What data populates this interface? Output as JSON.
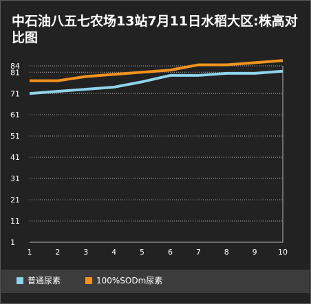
{
  "chart_data": {
    "type": "line",
    "title": "中石油八五七农场13站7月11日水稻大区:株高对比图",
    "x": [
      1,
      2,
      3,
      4,
      5,
      6,
      7,
      8,
      9,
      10
    ],
    "y_ticks": [
      1,
      11,
      21,
      31,
      41,
      51,
      61,
      71,
      81,
      84
    ],
    "ylim": [
      1,
      84
    ],
    "xlim": [
      1,
      10
    ],
    "grid": true,
    "legend_position": "bottom-left",
    "series": [
      {
        "name": "普通尿素",
        "color": "#8fd3ec",
        "values": [
          71,
          72,
          73,
          74,
          76.5,
          79.5,
          79.5,
          80.5,
          80.5,
          81.5
        ]
      },
      {
        "name": "100%SODm尿素",
        "color": "#f0931e",
        "values": [
          77,
          77,
          79,
          80,
          81,
          82,
          84.5,
          84.5,
          85.5,
          86.5
        ]
      }
    ]
  }
}
